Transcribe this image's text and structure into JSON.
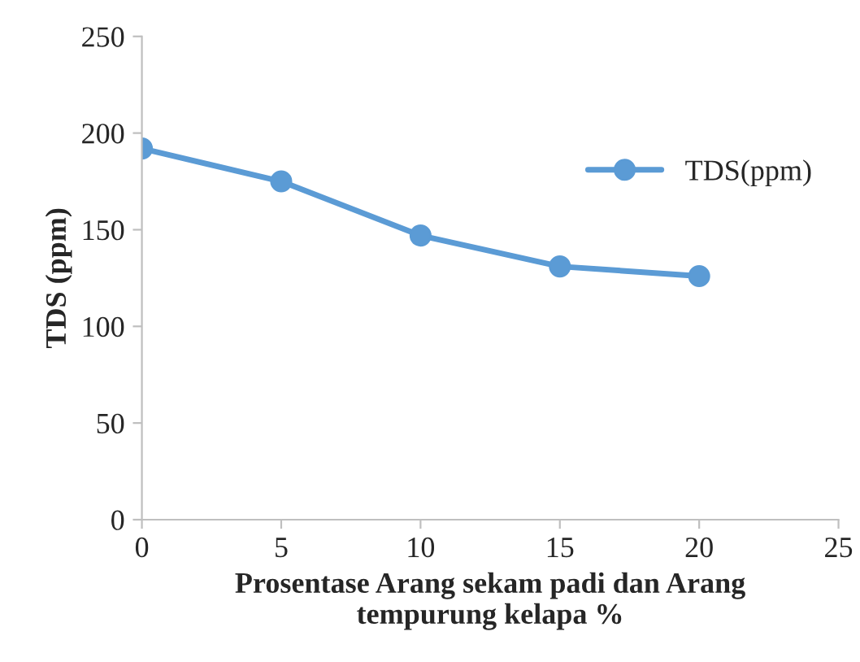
{
  "chart_data": {
    "type": "line",
    "xlabel": "Prosentase Arang sekam padi dan Arang\ntempurung kelapa %",
    "ylabel": "TDS (ppm)",
    "x": [
      0,
      5,
      10,
      15,
      20
    ],
    "series": [
      {
        "name": "TDS(ppm)",
        "color": "#5b9bd5",
        "values": [
          192,
          175,
          147,
          131,
          126
        ]
      }
    ],
    "xlim": [
      0,
      25
    ],
    "xticks": [
      0,
      5,
      10,
      15,
      20,
      25
    ],
    "ylim": [
      0,
      250
    ],
    "yticks": [
      0,
      50,
      100,
      150,
      200,
      250
    ],
    "grid": false,
    "legend": "top right",
    "marker": "circle",
    "line_style": "solid"
  }
}
